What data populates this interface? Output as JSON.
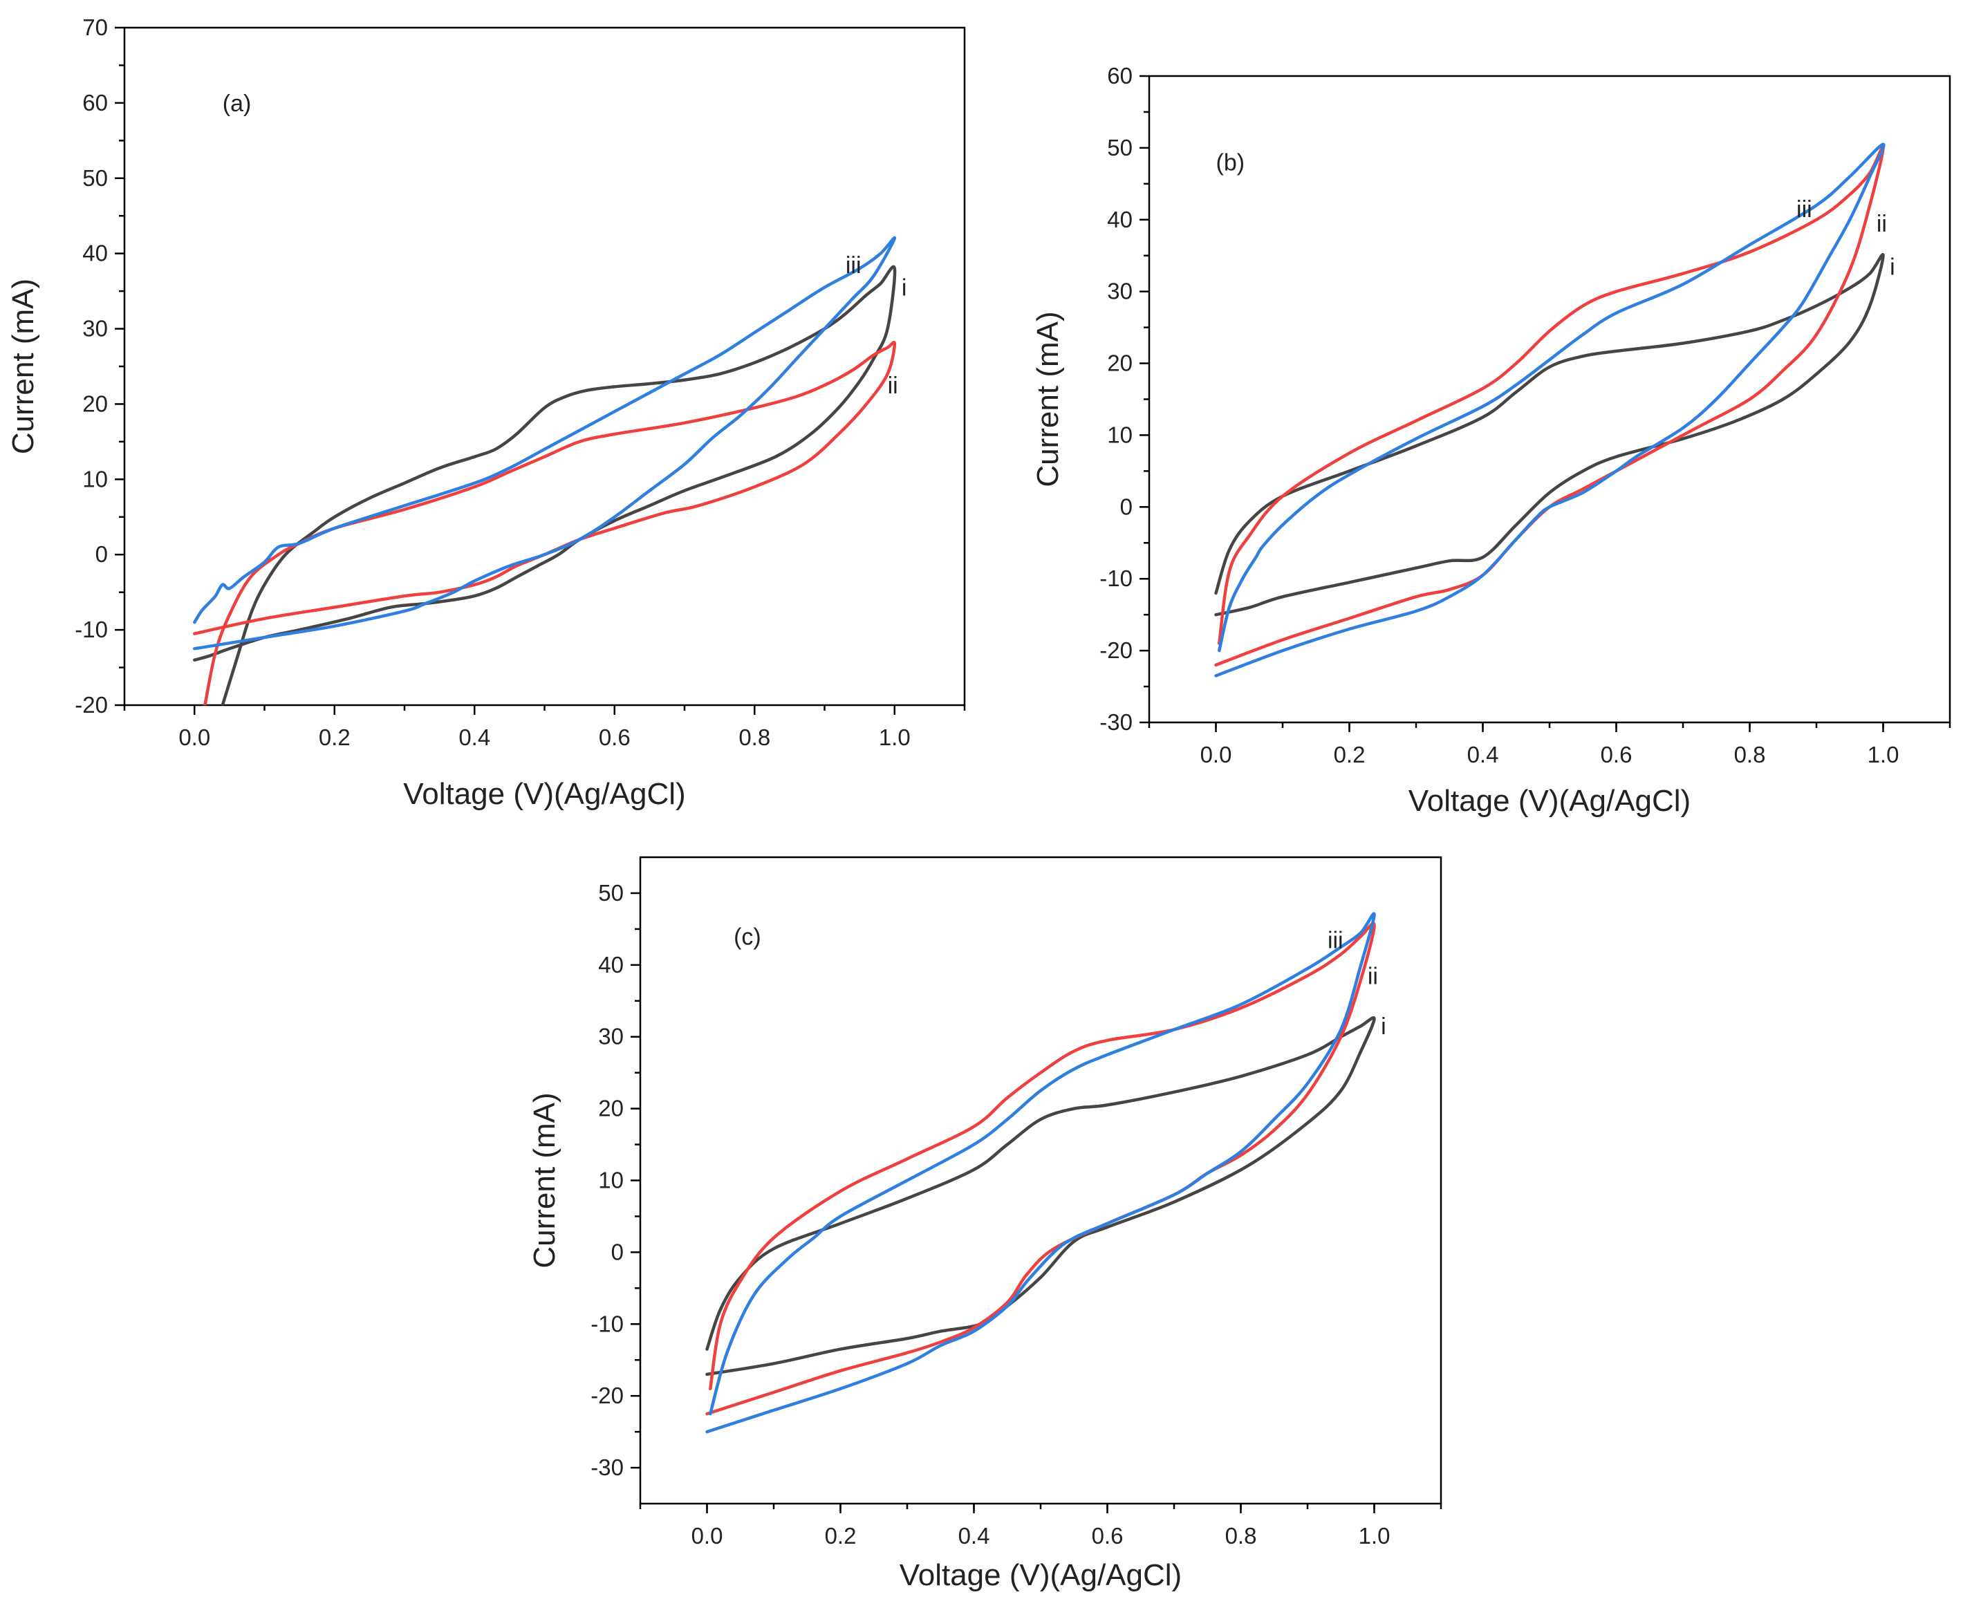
{
  "chart_data": [
    {
      "id": "a",
      "type": "line",
      "panel_label": "(a)",
      "xlabel": "Voltage (V)(Ag/AgCl)",
      "ylabel": "Current (mA)",
      "xlim": [
        -0.1,
        1.1
      ],
      "ylim": [
        -20,
        70
      ],
      "xticks": [
        0.0,
        0.2,
        0.4,
        0.6,
        0.8,
        1.0
      ],
      "xtick_labels": [
        "0.0",
        "0.2",
        "0.4",
        "0.6",
        "0.8",
        "1.0"
      ],
      "yticks": [
        -20,
        -10,
        0,
        10,
        20,
        30,
        40,
        50,
        60,
        70
      ],
      "ytick_labels": [
        "-20",
        "-10",
        "0",
        "10",
        "20",
        "30",
        "40",
        "50",
        "60",
        "70"
      ],
      "series": [
        {
          "name": "i",
          "label": "i",
          "color": "#454545",
          "label_at": [
            1.01,
            35.5
          ],
          "x": [
            0.04,
            0.06,
            0.08,
            0.1,
            0.13,
            0.17,
            0.2,
            0.25,
            0.3,
            0.35,
            0.4,
            0.43,
            0.46,
            0.5,
            0.53,
            0.56,
            0.6,
            0.65,
            0.7,
            0.75,
            0.8,
            0.85,
            0.9,
            0.93,
            0.96,
            0.98,
            1.0,
            0.99,
            0.97,
            0.95,
            0.92,
            0.88,
            0.83,
            0.76,
            0.7,
            0.65,
            0.6,
            0.55,
            0.52,
            0.49,
            0.46,
            0.43,
            0.4,
            0.37,
            0.33,
            0.28,
            0.22,
            0.15,
            0.1,
            0.05,
            0.02,
            0.0
          ],
          "y": [
            -20,
            -14,
            -8,
            -4,
            0,
            3,
            5,
            7.5,
            9.5,
            11.5,
            13,
            14,
            16,
            19.5,
            21,
            21.8,
            22.3,
            22.7,
            23.2,
            24,
            25.5,
            27.5,
            30,
            32,
            34.5,
            36,
            38,
            30,
            26,
            23,
            19.5,
            16,
            13,
            10.5,
            8.5,
            6.5,
            4.5,
            2,
            0,
            -1.5,
            -3,
            -4.5,
            -5.5,
            -6,
            -6.5,
            -7,
            -8.5,
            -10,
            -11,
            -12.5,
            -13.5,
            -14
          ]
        },
        {
          "name": "ii",
          "label": "ii",
          "color": "#ef4040",
          "label_at": [
            0.99,
            22.5
          ],
          "x": [
            0.015,
            0.03,
            0.05,
            0.08,
            0.12,
            0.15,
            0.2,
            0.3,
            0.4,
            0.45,
            0.5,
            0.55,
            0.6,
            0.7,
            0.8,
            0.86,
            0.9,
            0.94,
            0.97,
            0.99,
            1.0,
            0.99,
            0.96,
            0.92,
            0.87,
            0.8,
            0.72,
            0.67,
            0.6,
            0.55,
            0.5,
            0.46,
            0.43,
            0.4,
            0.35,
            0.3,
            0.2,
            0.1,
            0.0
          ],
          "y": [
            -20,
            -13,
            -8,
            -3,
            0,
            1.5,
            3.5,
            6,
            9,
            11,
            13,
            15,
            16,
            17.5,
            19.5,
            21,
            22.5,
            24.5,
            26.5,
            27.5,
            28,
            24,
            20,
            16,
            12,
            9,
            6.5,
            5.5,
            3.5,
            2,
            0,
            -1.5,
            -3,
            -4,
            -5,
            -5.5,
            -7,
            -8.5,
            -10.5
          ]
        },
        {
          "name": "iii",
          "label": "iii",
          "color": "#2f7fe0",
          "label_at": [
            0.93,
            38.5
          ],
          "x": [
            0.0,
            0.01,
            0.02,
            0.03,
            0.04,
            0.05,
            0.07,
            0.1,
            0.12,
            0.15,
            0.2,
            0.3,
            0.4,
            0.45,
            0.5,
            0.55,
            0.6,
            0.65,
            0.7,
            0.75,
            0.8,
            0.85,
            0.9,
            0.95,
            0.98,
            1.0,
            0.97,
            0.94,
            0.9,
            0.86,
            0.82,
            0.78,
            0.74,
            0.7,
            0.65,
            0.6,
            0.55,
            0.5,
            0.45,
            0.4,
            0.37,
            0.33,
            0.3,
            0.2,
            0.1,
            0.0
          ],
          "y": [
            -9,
            -7.5,
            -6.5,
            -5.5,
            -4,
            -4.5,
            -3,
            -1,
            1,
            1.5,
            3.5,
            6.5,
            9.5,
            11.5,
            14,
            16.5,
            19,
            21.5,
            24,
            26.5,
            29.5,
            32.5,
            35.5,
            38,
            40,
            42,
            37,
            34,
            30,
            26,
            22,
            18.5,
            15.5,
            12,
            8.5,
            5,
            2,
            0,
            -1.5,
            -3.5,
            -5,
            -6.5,
            -7.5,
            -9.5,
            -11,
            -12.5
          ]
        }
      ]
    },
    {
      "id": "b",
      "type": "line",
      "panel_label": "(b)",
      "xlabel": "Voltage (V)(Ag/AgCl)",
      "ylabel": "Current (mA)",
      "xlim": [
        -0.1,
        1.1
      ],
      "ylim": [
        -30,
        60
      ],
      "xticks": [
        0.0,
        0.2,
        0.4,
        0.6,
        0.8,
        1.0
      ],
      "xtick_labels": [
        "0.0",
        "0.2",
        "0.4",
        "0.6",
        "0.8",
        "1.0"
      ],
      "yticks": [
        -30,
        -20,
        -10,
        0,
        10,
        20,
        30,
        40,
        50,
        60
      ],
      "ytick_labels": [
        "-30",
        "-20",
        "-10",
        "0",
        "10",
        "20",
        "30",
        "40",
        "50",
        "60"
      ],
      "series": [
        {
          "name": "i",
          "label": "i",
          "color": "#454545",
          "label_at": [
            1.01,
            33.5
          ],
          "x": [
            0.0,
            0.02,
            0.05,
            0.1,
            0.2,
            0.3,
            0.4,
            0.45,
            0.5,
            0.55,
            0.6,
            0.7,
            0.8,
            0.85,
            0.9,
            0.95,
            0.98,
            1.0,
            0.98,
            0.95,
            0.9,
            0.85,
            0.78,
            0.7,
            0.6,
            0.55,
            0.5,
            0.45,
            0.4,
            0.35,
            0.3,
            0.2,
            0.1,
            0.05,
            0.0
          ],
          "y": [
            -12,
            -6,
            -2,
            1.5,
            5,
            8.5,
            12.5,
            16,
            19.5,
            21,
            21.7,
            22.8,
            24.5,
            26,
            28,
            30.5,
            32.5,
            35,
            28,
            23,
            18.5,
            15,
            12,
            9.5,
            7,
            5,
            2,
            -2.5,
            -7,
            -7.5,
            -8.5,
            -10.5,
            -12.5,
            -14,
            -15
          ]
        },
        {
          "name": "ii",
          "label": "ii",
          "color": "#ef4040",
          "label_at": [
            0.99,
            39.5
          ],
          "x": [
            0.005,
            0.02,
            0.05,
            0.1,
            0.2,
            0.3,
            0.4,
            0.45,
            0.5,
            0.55,
            0.6,
            0.7,
            0.8,
            0.9,
            0.95,
            0.98,
            1.0,
            0.98,
            0.95,
            0.9,
            0.85,
            0.8,
            0.72,
            0.65,
            0.6,
            0.55,
            0.5,
            0.45,
            0.4,
            0.35,
            0.3,
            0.2,
            0.1,
            0.0
          ],
          "y": [
            -19,
            -9,
            -4,
            1.5,
            7.5,
            12,
            16.5,
            20,
            24.5,
            28,
            30,
            32.5,
            35.5,
            40,
            43.5,
            46.5,
            50,
            42,
            33,
            24,
            19,
            15,
            11,
            7.5,
            5,
            2.5,
            0,
            -4.5,
            -9.5,
            -11.5,
            -12.5,
            -15.5,
            -18.5,
            -22
          ]
        },
        {
          "name": "iii",
          "label": "iii",
          "color": "#2f7fe0",
          "label_at": [
            0.87,
            41.5
          ],
          "x": [
            0.005,
            0.02,
            0.04,
            0.06,
            0.07,
            0.1,
            0.15,
            0.2,
            0.3,
            0.4,
            0.45,
            0.5,
            0.55,
            0.6,
            0.7,
            0.8,
            0.9,
            0.95,
            1.0,
            0.98,
            0.95,
            0.92,
            0.88,
            0.85,
            0.8,
            0.75,
            0.7,
            0.63,
            0.6,
            0.55,
            0.5,
            0.48,
            0.45,
            0.4,
            0.35,
            0.3,
            0.2,
            0.1,
            0.0
          ],
          "y": [
            -20,
            -14,
            -10,
            -7,
            -5.5,
            -2.5,
            1.5,
            4.5,
            9.5,
            14,
            17,
            20.5,
            24,
            27,
            31,
            36.5,
            42,
            46,
            50.5,
            46,
            40,
            35,
            28.5,
            25,
            20,
            15,
            11,
            7,
            5,
            2,
            0,
            -1.5,
            -4.5,
            -9.5,
            -12.5,
            -14.5,
            -17,
            -20,
            -23.5
          ]
        }
      ]
    },
    {
      "id": "c",
      "type": "line",
      "panel_label": "(c)",
      "xlabel": "Voltage (V)(Ag/AgCl)",
      "ylabel": "Current (mA)",
      "xlim": [
        -0.1,
        1.1
      ],
      "ylim": [
        -35,
        55
      ],
      "xticks": [
        0.0,
        0.2,
        0.4,
        0.6,
        0.8,
        1.0
      ],
      "xtick_labels": [
        "0.0",
        "0.2",
        "0.4",
        "0.6",
        "0.8",
        "1.0"
      ],
      "yticks": [
        -30,
        -20,
        -10,
        0,
        10,
        20,
        30,
        40,
        50
      ],
      "ytick_labels": [
        "-30",
        "-20",
        "-10",
        "0",
        "10",
        "20",
        "30",
        "40",
        "50"
      ],
      "series": [
        {
          "name": "i",
          "label": "i",
          "color": "#454545",
          "label_at": [
            1.01,
            31.5
          ],
          "x": [
            0.0,
            0.02,
            0.05,
            0.1,
            0.2,
            0.3,
            0.4,
            0.45,
            0.5,
            0.55,
            0.6,
            0.7,
            0.8,
            0.9,
            0.95,
            0.98,
            1.0,
            0.98,
            0.95,
            0.9,
            0.81,
            0.7,
            0.6,
            0.55,
            0.5,
            0.45,
            0.41,
            0.35,
            0.3,
            0.2,
            0.1,
            0.0
          ],
          "y": [
            -13.5,
            -8,
            -3.5,
            0.5,
            4,
            7.5,
            11.5,
            15,
            18.5,
            20,
            20.5,
            22.3,
            24.5,
            27.5,
            30,
            31.5,
            32.5,
            28,
            22.5,
            18,
            12,
            7,
            3.5,
            1.5,
            -3.5,
            -7.5,
            -10,
            -11,
            -12,
            -13.5,
            -15.5,
            -17
          ]
        },
        {
          "name": "ii",
          "label": "ii",
          "color": "#ef4040",
          "label_at": [
            0.99,
            38.5
          ],
          "x": [
            0.005,
            0.02,
            0.05,
            0.1,
            0.2,
            0.3,
            0.4,
            0.45,
            0.5,
            0.55,
            0.6,
            0.7,
            0.8,
            0.9,
            0.95,
            0.98,
            1.0,
            0.98,
            0.95,
            0.9,
            0.85,
            0.8,
            0.75,
            0.7,
            0.6,
            0.52,
            0.48,
            0.45,
            0.4,
            0.35,
            0.3,
            0.2,
            0.1,
            0.0
          ],
          "y": [
            -19,
            -10,
            -4,
            2,
            8.5,
            13,
            17.5,
            21.5,
            25,
            28,
            29.5,
            31,
            34,
            38.5,
            41.5,
            44,
            45.5,
            38,
            30,
            22,
            17,
            13.5,
            11,
            8,
            4,
            0.5,
            -3,
            -7,
            -10.5,
            -12.5,
            -14,
            -16.5,
            -19.5,
            -22.5
          ]
        },
        {
          "name": "iii",
          "label": "iii",
          "color": "#2f7fe0",
          "label_at": [
            0.93,
            43.5
          ],
          "x": [
            0.005,
            0.03,
            0.07,
            0.12,
            0.16,
            0.2,
            0.3,
            0.4,
            0.45,
            0.5,
            0.55,
            0.6,
            0.7,
            0.8,
            0.9,
            0.95,
            0.98,
            1.0,
            0.98,
            0.95,
            0.9,
            0.85,
            0.8,
            0.75,
            0.7,
            0.6,
            0.55,
            0.52,
            0.48,
            0.45,
            0.4,
            0.35,
            0.3,
            0.2,
            0.1,
            0.0
          ],
          "y": [
            -22.5,
            -14,
            -6,
            -1,
            2,
            5,
            10,
            15,
            18.5,
            22.5,
            25.5,
            27.5,
            31,
            34.5,
            39.5,
            42.5,
            44.5,
            47,
            40,
            31,
            23.5,
            18.5,
            14,
            11,
            8,
            4,
            2,
            0,
            -4,
            -7.5,
            -11,
            -13,
            -15.5,
            -19,
            -22,
            -25
          ]
        }
      ]
    }
  ]
}
